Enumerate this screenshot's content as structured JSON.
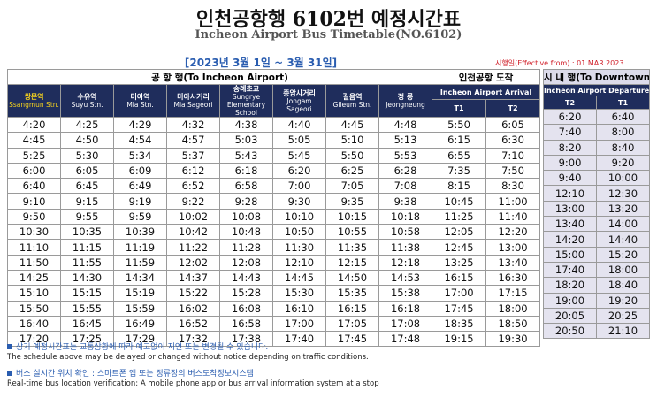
{
  "header": {
    "title": "인천공항행 6102번 예정시간표",
    "subtitle": "Incheon Airport Bus Timetable(NO.6102)",
    "period": "[2023년 3월 1일 ~ 3월 31일]",
    "effective": "시행일(Effective from) : 01.MAR.2023"
  },
  "to_airport": {
    "title": "공 항 행(To Incheon Airport)",
    "stops": [
      {
        "ko": "쌍문역",
        "en": "Ssangmun Stn."
      },
      {
        "ko": "수유역",
        "en": "Suyu Stn."
      },
      {
        "ko": "미아역",
        "en": "Mia Stn."
      },
      {
        "ko": "미아사거리",
        "en": "Mia Sageori"
      },
      {
        "ko": "숭례초교",
        "en": "Sungrye Elementary School"
      },
      {
        "ko": "종암사거리",
        "en": "Jongam Sageori"
      },
      {
        "ko": "길음역",
        "en": "Gileum Stn."
      },
      {
        "ko": "정 릉",
        "en": "Jeongneung"
      }
    ],
    "arrival": {
      "title": "인천공항 도착",
      "subtitle": "Incheon Airport Arrival",
      "cols": [
        "T1",
        "T2"
      ]
    }
  },
  "to_downtown": {
    "title": "시 내 행(To Downtown)",
    "subtitle": "Incheon Airport Departure",
    "cols": [
      "T2",
      "T1"
    ]
  },
  "rows": [
    {
      "stops": [
        "4:20",
        "4:25",
        "4:29",
        "4:32",
        "4:38",
        "4:40",
        "4:45",
        "4:48"
      ],
      "arrival": [
        "5:50",
        "6:05"
      ],
      "downtown": [
        "6:20",
        "6:40"
      ]
    },
    {
      "stops": [
        "4:45",
        "4:50",
        "4:54",
        "4:57",
        "5:03",
        "5:05",
        "5:10",
        "5:13"
      ],
      "arrival": [
        "6:15",
        "6:30"
      ],
      "downtown": [
        "7:40",
        "8:00"
      ]
    },
    {
      "stops": [
        "5:25",
        "5:30",
        "5:34",
        "5:37",
        "5:43",
        "5:45",
        "5:50",
        "5:53"
      ],
      "arrival": [
        "6:55",
        "7:10"
      ],
      "downtown": [
        "8:20",
        "8:40"
      ]
    },
    {
      "stops": [
        "6:00",
        "6:05",
        "6:09",
        "6:12",
        "6:18",
        "6:20",
        "6:25",
        "6:28"
      ],
      "arrival": [
        "7:35",
        "7:50"
      ],
      "downtown": [
        "9:00",
        "9:20"
      ]
    },
    {
      "stops": [
        "6:40",
        "6:45",
        "6:49",
        "6:52",
        "6:58",
        "7:00",
        "7:05",
        "7:08"
      ],
      "arrival": [
        "8:15",
        "8:30"
      ],
      "downtown": [
        "9:40",
        "10:00"
      ]
    },
    {
      "stops": [
        "9:10",
        "9:15",
        "9:19",
        "9:22",
        "9:28",
        "9:30",
        "9:35",
        "9:38"
      ],
      "arrival": [
        "10:45",
        "11:00"
      ],
      "downtown": [
        "12:10",
        "12:30"
      ]
    },
    {
      "stops": [
        "9:50",
        "9:55",
        "9:59",
        "10:02",
        "10:08",
        "10:10",
        "10:15",
        "10:18"
      ],
      "arrival": [
        "11:25",
        "11:40"
      ],
      "downtown": [
        "13:00",
        "13:20"
      ]
    },
    {
      "stops": [
        "10:30",
        "10:35",
        "10:39",
        "10:42",
        "10:48",
        "10:50",
        "10:55",
        "10:58"
      ],
      "arrival": [
        "12:05",
        "12:20"
      ],
      "downtown": [
        "13:40",
        "14:00"
      ]
    },
    {
      "stops": [
        "11:10",
        "11:15",
        "11:19",
        "11:22",
        "11:28",
        "11:30",
        "11:35",
        "11:38"
      ],
      "arrival": [
        "12:45",
        "13:00"
      ],
      "downtown": [
        "14:20",
        "14:40"
      ]
    },
    {
      "stops": [
        "11:50",
        "11:55",
        "11:59",
        "12:02",
        "12:08",
        "12:10",
        "12:15",
        "12:18"
      ],
      "arrival": [
        "13:25",
        "13:40"
      ],
      "downtown": [
        "15:00",
        "15:20"
      ]
    },
    {
      "stops": [
        "14:25",
        "14:30",
        "14:34",
        "14:37",
        "14:43",
        "14:45",
        "14:50",
        "14:53"
      ],
      "arrival": [
        "16:15",
        "16:30"
      ],
      "downtown": [
        "17:40",
        "18:00"
      ]
    },
    {
      "stops": [
        "15:10",
        "15:15",
        "15:19",
        "15:22",
        "15:28",
        "15:30",
        "15:35",
        "15:38"
      ],
      "arrival": [
        "17:00",
        "17:15"
      ],
      "downtown": [
        "18:20",
        "18:40"
      ]
    },
    {
      "stops": [
        "15:50",
        "15:55",
        "15:59",
        "16:02",
        "16:08",
        "16:10",
        "16:15",
        "16:18"
      ],
      "arrival": [
        "17:45",
        "18:00"
      ],
      "downtown": [
        "19:00",
        "19:20"
      ]
    },
    {
      "stops": [
        "16:40",
        "16:45",
        "16:49",
        "16:52",
        "16:58",
        "17:00",
        "17:05",
        "17:08"
      ],
      "arrival": [
        "18:35",
        "18:50"
      ],
      "downtown": [
        "20:05",
        "20:25"
      ]
    },
    {
      "stops": [
        "17:20",
        "17:25",
        "17:29",
        "17:32",
        "17:38",
        "17:40",
        "17:45",
        "17:48"
      ],
      "arrival": [
        "19:15",
        "19:30"
      ],
      "downtown": [
        "20:50",
        "21:10"
      ]
    }
  ],
  "notes": [
    {
      "ko": "상기 예정시간표는 교통상황에 따라 예고없이 지연 또는 변경될 수 있습니다.",
      "en": "The schedule above may be delayed or changed without notice depending on traffic conditions."
    },
    {
      "ko": "버스 실시간 위치 확인 : 스마트폰 앱 또는 정류장의 버스도착정보시스템",
      "en": "Real-time bus location verification: A mobile phone app or bus arrival information system at a stop"
    }
  ]
}
